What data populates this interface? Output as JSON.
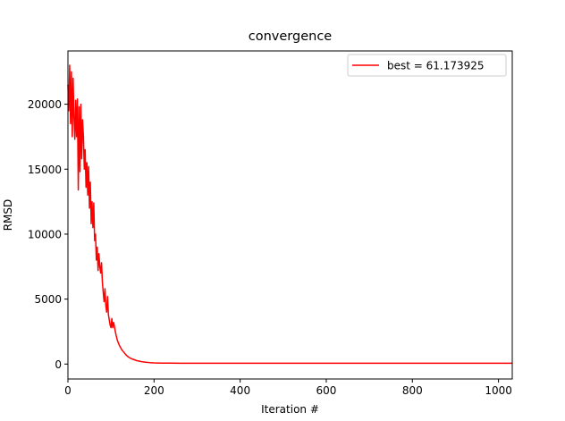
{
  "chart_data": {
    "type": "line",
    "title": "convergence",
    "xlabel": "Iteration #",
    "ylabel": "RMSD",
    "xlim": [
      0,
      1032
    ],
    "ylim": [
      -1150,
      24100
    ],
    "xticks": [
      0,
      200,
      400,
      600,
      800,
      1000
    ],
    "xtick_labels": [
      "0",
      "200",
      "400",
      "600",
      "800",
      "1000"
    ],
    "yticks": [
      0,
      5000,
      10000,
      15000,
      20000
    ],
    "ytick_labels": [
      "0",
      "5000",
      "10000",
      "15000",
      "20000"
    ],
    "grid": false,
    "legend_position": "top-right",
    "series": [
      {
        "name": "best = 61.173925",
        "color": "#ff0000",
        "x": [
          0,
          2,
          4,
          6,
          8,
          10,
          12,
          14,
          16,
          18,
          20,
          22,
          24,
          26,
          28,
          30,
          32,
          34,
          36,
          38,
          40,
          42,
          44,
          46,
          48,
          50,
          52,
          54,
          56,
          58,
          60,
          62,
          64,
          66,
          68,
          70,
          72,
          74,
          76,
          78,
          80,
          82,
          84,
          86,
          88,
          90,
          92,
          94,
          96,
          98,
          100,
          102,
          104,
          106,
          108,
          110,
          112,
          115,
          120,
          125,
          130,
          135,
          140,
          145,
          150,
          160,
          170,
          180,
          190,
          200,
          220,
          240,
          260,
          300,
          350,
          400,
          500,
          600,
          700,
          800,
          900,
          1000,
          1032
        ],
        "values": [
          21500,
          19500,
          23000,
          18500,
          22500,
          17500,
          22000,
          19000,
          17300,
          20300,
          17500,
          20400,
          13400,
          19800,
          14800,
          20000,
          15800,
          18800,
          17500,
          15000,
          16500,
          13600,
          15500,
          13000,
          15200,
          12000,
          14000,
          10800,
          12500,
          10500,
          12400,
          9500,
          10000,
          8000,
          9000,
          7200,
          8500,
          7500,
          7000,
          7800,
          6300,
          5500,
          4800,
          5800,
          4500,
          4000,
          5200,
          3800,
          3400,
          3000,
          2800,
          3500,
          2800,
          3200,
          2900,
          2500,
          2200,
          1800,
          1400,
          1100,
          900,
          700,
          550,
          450,
          380,
          260,
          190,
          140,
          110,
          90,
          75,
          68,
          64,
          62,
          61.5,
          61.2,
          61.17,
          61.17,
          61.17,
          61.17,
          61.17,
          61.17,
          61.17
        ]
      }
    ]
  }
}
